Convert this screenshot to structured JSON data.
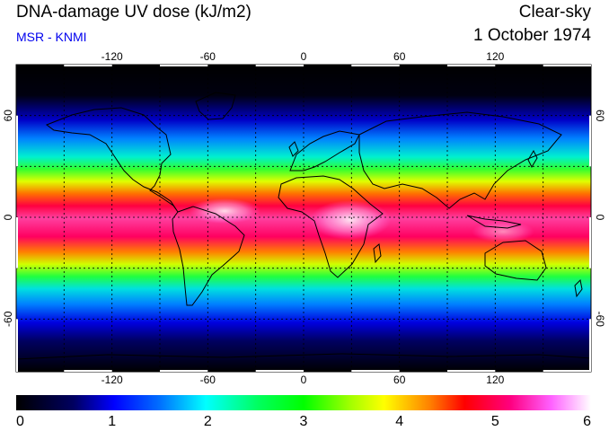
{
  "header": {
    "title": "DNA-damage UV dose (kJ/m2)",
    "source": "MSR - KNMI",
    "sky_condition": "Clear-sky",
    "date": "1 October 1974"
  },
  "map": {
    "projection": "equirectangular",
    "lon_range": [
      -180,
      180
    ],
    "lat_range": [
      -90,
      90
    ],
    "lon_tick_labels": [
      "-120",
      "-60",
      "0",
      "60",
      "120"
    ],
    "lon_ticks": [
      -120,
      -60,
      0,
      60,
      120
    ],
    "lat_tick_labels": [
      "60",
      "0",
      "-60"
    ],
    "lat_ticks": [
      60,
      0,
      -60
    ],
    "grid_lines": true,
    "grid_style": "dotted",
    "coastlines": true,
    "background_color": "#000000"
  },
  "colorbar": {
    "tick_labels": [
      "0",
      "1",
      "2",
      "3",
      "4",
      "5",
      "6"
    ],
    "min": 0,
    "max": 6,
    "unit": "kJ/m2",
    "colors": [
      "#000000",
      "#0000ff",
      "#00ffff",
      "#00ff00",
      "#ffff00",
      "#ff0000",
      "#ff00ff",
      "#ffffff"
    ]
  }
}
